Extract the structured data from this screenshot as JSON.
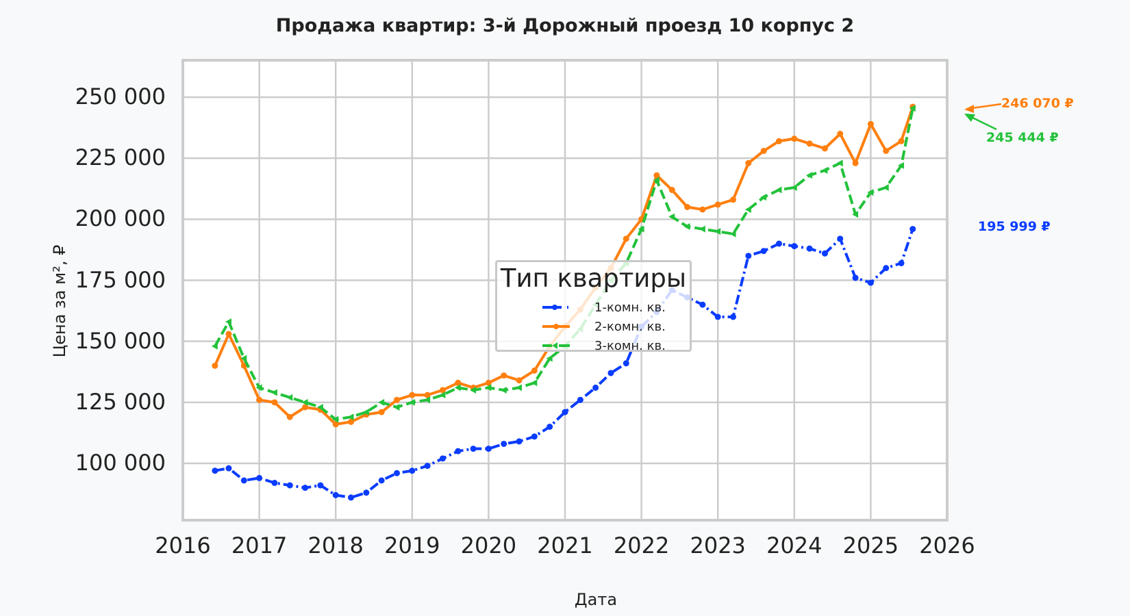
{
  "title": "Продажа квартир: 3-й Дорожный проезд 10 корпус 2",
  "axes": {
    "xlabel": "Дата",
    "ylabel": "Цена за м², ₽",
    "yticks": [
      "100 000",
      "125 000",
      "150 000",
      "175 000",
      "200 000",
      "225 000",
      "250 000"
    ],
    "xticks": [
      "2016",
      "2017",
      "2018",
      "2019",
      "2020",
      "2021",
      "2022",
      "2023",
      "2024",
      "2025",
      "2026"
    ]
  },
  "legend": {
    "title": "Тип квартиры",
    "items": [
      {
        "label": "1-комн. кв.",
        "color": "#0a3cff"
      },
      {
        "label": "2-комн. кв.",
        "color": "#ff7f0e"
      },
      {
        "label": "3-комн. кв.",
        "color": "#22c23a"
      }
    ]
  },
  "annotations": {
    "two_room": "246 070 ₽",
    "three_room": "245 444 ₽",
    "one_room": "195 999 ₽"
  },
  "chart_data": {
    "type": "line",
    "title": "Продажа квартир: 3-й Дорожный проезд 10 корпус 2",
    "xlabel": "Дата",
    "ylabel": "Цена за м², ₽",
    "xlim": [
      2016.0,
      2026.0
    ],
    "ylim": [
      76700,
      265000
    ],
    "grid": true,
    "legend_position": "center",
    "legend_title": "Тип квартиры",
    "x": [
      2016.42,
      2016.6,
      2016.8,
      2017.0,
      2017.2,
      2017.4,
      2017.6,
      2017.8,
      2018.0,
      2018.2,
      2018.4,
      2018.6,
      2018.8,
      2019.0,
      2019.2,
      2019.4,
      2019.6,
      2019.8,
      2020.0,
      2020.2,
      2020.4,
      2020.6,
      2020.8,
      2021.0,
      2021.2,
      2021.4,
      2021.6,
      2021.8,
      2022.0,
      2022.2,
      2022.4,
      2022.6,
      2022.8,
      2023.0,
      2023.2,
      2023.4,
      2023.6,
      2023.8,
      2024.0,
      2024.2,
      2024.4,
      2024.6,
      2024.8,
      2025.0,
      2025.2,
      2025.4,
      2025.55
    ],
    "series": [
      {
        "name": "1-комн. кв.",
        "color": "#0a3cff",
        "linestyle": "dashdot",
        "marker": "o",
        "values": [
          97000,
          98000,
          93000,
          94000,
          92000,
          91000,
          90000,
          91000,
          87000,
          86000,
          88000,
          93000,
          96000,
          97000,
          99000,
          102000,
          105000,
          106000,
          106000,
          108000,
          109000,
          111000,
          115000,
          121000,
          126000,
          131000,
          137000,
          141000,
          156000,
          162000,
          171000,
          168000,
          165000,
          160000,
          160000,
          185000,
          187000,
          190000,
          189000,
          188000,
          186000,
          192000,
          176000,
          174000,
          180000,
          182000,
          195999
        ]
      },
      {
        "name": "2-комн. кв.",
        "color": "#ff7f0e",
        "linestyle": "solid",
        "marker": "o",
        "values": [
          140000,
          153000,
          140000,
          126000,
          125000,
          119000,
          123000,
          122000,
          116000,
          117000,
          120000,
          121000,
          126000,
          128000,
          128000,
          130000,
          133000,
          131000,
          133000,
          136000,
          134000,
          138000,
          148000,
          156000,
          163000,
          172000,
          180000,
          192000,
          200000,
          218000,
          212000,
          205000,
          204000,
          206000,
          208000,
          223000,
          228000,
          232000,
          233000,
          231000,
          229000,
          235000,
          223000,
          239000,
          228000,
          232000,
          246070
        ]
      },
      {
        "name": "3-комн. кв.",
        "color": "#22c23a",
        "linestyle": "dashed",
        "marker": "<",
        "values": [
          148000,
          158000,
          143000,
          131000,
          129000,
          127000,
          125000,
          123000,
          118000,
          119000,
          121000,
          125000,
          123000,
          125000,
          126000,
          128000,
          131000,
          130000,
          131000,
          130000,
          131000,
          133000,
          143000,
          148000,
          155000,
          165000,
          175000,
          182000,
          196000,
          216000,
          201000,
          197000,
          196000,
          195000,
          194000,
          204000,
          209000,
          212000,
          213000,
          218000,
          220000,
          223000,
          202000,
          211000,
          213000,
          222000,
          245444
        ]
      }
    ]
  }
}
